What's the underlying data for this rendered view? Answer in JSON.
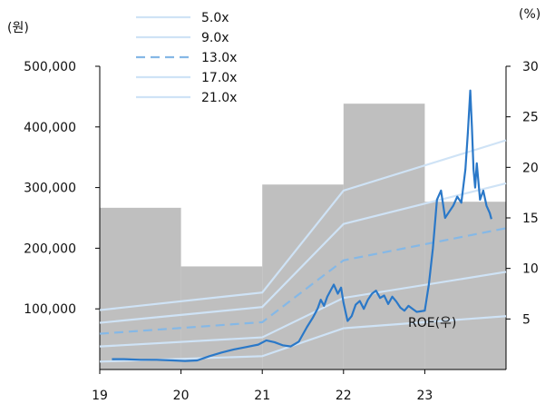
{
  "chart_data": {
    "type": "line",
    "title": "",
    "left_axis": {
      "unit_label": "(원)",
      "ylim": [
        0,
        500000
      ],
      "ticks": [
        100000,
        200000,
        300000,
        400000,
        500000
      ],
      "tick_labels": [
        "100,000",
        "200,000",
        "300,000",
        "400,000",
        "500,000"
      ]
    },
    "right_axis": {
      "unit_label": "(%)",
      "ylim": [
        0,
        30
      ],
      "ticks": [
        5,
        10,
        15,
        20,
        25,
        30
      ],
      "tick_labels": [
        "5",
        "10",
        "15",
        "20",
        "25",
        "30"
      ]
    },
    "x_axis": {
      "range": [
        2019.0,
        2024.0
      ],
      "ticks": [
        2019,
        2020,
        2021,
        2022,
        2023
      ],
      "tick_labels": [
        "19",
        "20",
        "21",
        "22",
        "23"
      ]
    },
    "roe_bars": {
      "label": "ROE(우)",
      "color": "#bfbfbf",
      "periods": [
        {
          "start": 2019.0,
          "end": 2020.0,
          "value": 16.0
        },
        {
          "start": 2020.0,
          "end": 2021.0,
          "value": 10.2
        },
        {
          "start": 2021.0,
          "end": 2022.0,
          "value": 18.3
        },
        {
          "start": 2022.0,
          "end": 2023.0,
          "value": 26.3
        },
        {
          "start": 2023.0,
          "end": 2024.0,
          "value": 16.6
        }
      ]
    },
    "per_bands": [
      {
        "name": "5.0x",
        "dashed": false,
        "color": "#cfe3f6",
        "x": [
          2019.0,
          2021.0,
          2022.0,
          2024.0
        ],
        "y": [
          13000,
          22000,
          68000,
          88000
        ]
      },
      {
        "name": "9.0x",
        "dashed": false,
        "color": "#cfe3f6",
        "x": [
          2019.0,
          2021.0,
          2022.0,
          2024.0
        ],
        "y": [
          38000,
          53000,
          118000,
          161000
        ]
      },
      {
        "name": "13.0x",
        "dashed": true,
        "color": "#85b8e6",
        "x": [
          2019.0,
          2021.0,
          2022.0,
          2024.0
        ],
        "y": [
          59000,
          78000,
          180000,
          233000
        ]
      },
      {
        "name": "17.0x",
        "dashed": false,
        "color": "#cfe3f6",
        "x": [
          2019.0,
          2021.0,
          2022.0,
          2024.0
        ],
        "y": [
          77000,
          103000,
          240000,
          307000
        ]
      },
      {
        "name": "21.0x",
        "dashed": false,
        "color": "#cfe3f6",
        "x": [
          2019.0,
          2021.0,
          2022.0,
          2024.0
        ],
        "y": [
          98000,
          127000,
          295000,
          378000
        ]
      }
    ],
    "price": {
      "color": "#2a78c8",
      "x": [
        2019.15,
        2019.3,
        2019.5,
        2019.7,
        2019.9,
        2020.05,
        2020.2,
        2020.35,
        2020.5,
        2020.65,
        2020.8,
        2020.95,
        2021.05,
        2021.15,
        2021.25,
        2021.35,
        2021.45,
        2021.55,
        2021.62,
        2021.68,
        2021.72,
        2021.76,
        2021.8,
        2021.84,
        2021.88,
        2021.93,
        2021.97,
        2022.0,
        2022.05,
        2022.1,
        2022.15,
        2022.2,
        2022.25,
        2022.3,
        2022.35,
        2022.4,
        2022.45,
        2022.5,
        2022.55,
        2022.6,
        2022.65,
        2022.7,
        2022.75,
        2022.8,
        2022.85,
        2022.9,
        2022.95,
        2023.0,
        2023.05,
        2023.1,
        2023.15,
        2023.2,
        2023.25,
        2023.3,
        2023.35,
        2023.4,
        2023.45,
        2023.5,
        2023.53,
        2023.56,
        2023.58,
        2023.6,
        2023.62,
        2023.64,
        2023.66,
        2023.68,
        2023.72,
        2023.76,
        2023.8,
        2023.82
      ],
      "y": [
        17000,
        17000,
        16000,
        16000,
        15000,
        14000,
        15000,
        22000,
        28000,
        33000,
        37000,
        41000,
        48000,
        45000,
        40000,
        38000,
        46000,
        70000,
        85000,
        100000,
        115000,
        105000,
        120000,
        130000,
        140000,
        125000,
        135000,
        110000,
        80000,
        88000,
        107000,
        113000,
        100000,
        115000,
        125000,
        130000,
        118000,
        122000,
        108000,
        120000,
        112000,
        102000,
        97000,
        105000,
        100000,
        95000,
        96000,
        97000,
        140000,
        200000,
        280000,
        295000,
        250000,
        260000,
        270000,
        285000,
        275000,
        330000,
        390000,
        460000,
        400000,
        330000,
        300000,
        340000,
        310000,
        280000,
        295000,
        270000,
        258000,
        248000
      ]
    },
    "grid": false,
    "legend_position": "top-center"
  }
}
